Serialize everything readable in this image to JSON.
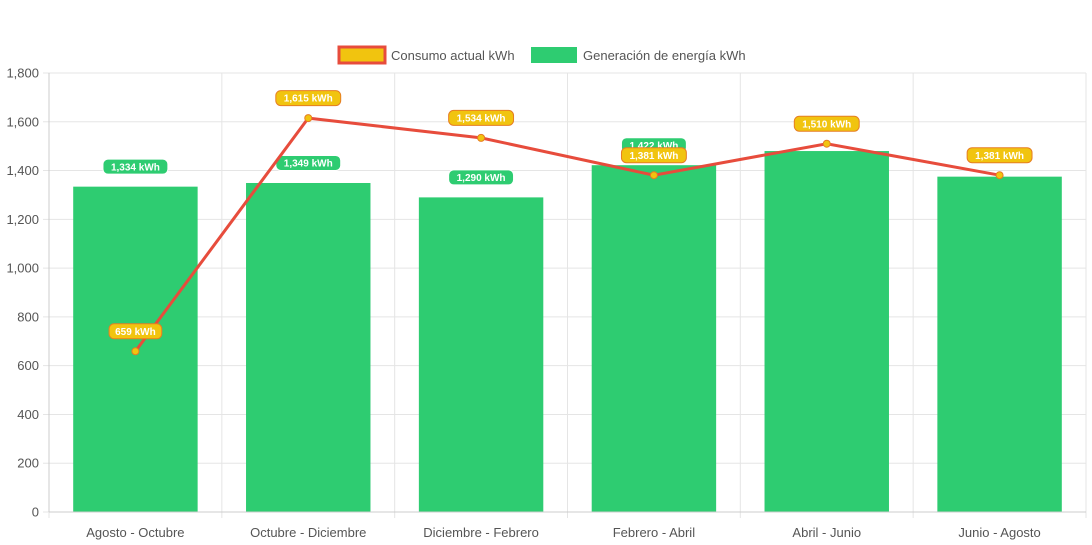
{
  "chart_data": {
    "type": "bar",
    "title": "",
    "xlabel": "",
    "ylabel": "",
    "categories": [
      "Agosto - Octubre",
      "Octubre - Diciembre",
      "Diciembre - Febrero",
      "Febrero - Abril",
      "Abril - Junio",
      "Junio - Agosto"
    ],
    "ylim": [
      0,
      1800
    ],
    "yticks": [
      "0",
      "200",
      "400",
      "600",
      "800",
      "1,000",
      "1,200",
      "1,400",
      "1,600",
      "1,800"
    ],
    "yticks_values": [
      0,
      200,
      400,
      600,
      800,
      1000,
      1200,
      1400,
      1600,
      1800
    ],
    "grid": true,
    "legend_position": "top-center",
    "series": [
      {
        "name": "Consumo actual kWh",
        "type": "line",
        "color": "#e74c3c",
        "point_color": "#f1c40f",
        "values": [
          659,
          1615,
          1534,
          1381,
          1510,
          1381
        ],
        "labels": [
          "659 kWh",
          "1,615 kWh",
          "1,534 kWh",
          "1,381 kWh",
          "1,510 kWh",
          "1,381 kWh"
        ]
      },
      {
        "name": "Generación de energía kWh",
        "type": "bar",
        "color": "#2ecc71",
        "values": [
          1334,
          1349,
          1290,
          1422,
          1480,
          1375
        ],
        "labels": [
          "1,334 kWh",
          "1,349 kWh",
          "1,290 kWh",
          "1,422 kWh",
          "",
          ""
        ]
      }
    ]
  }
}
